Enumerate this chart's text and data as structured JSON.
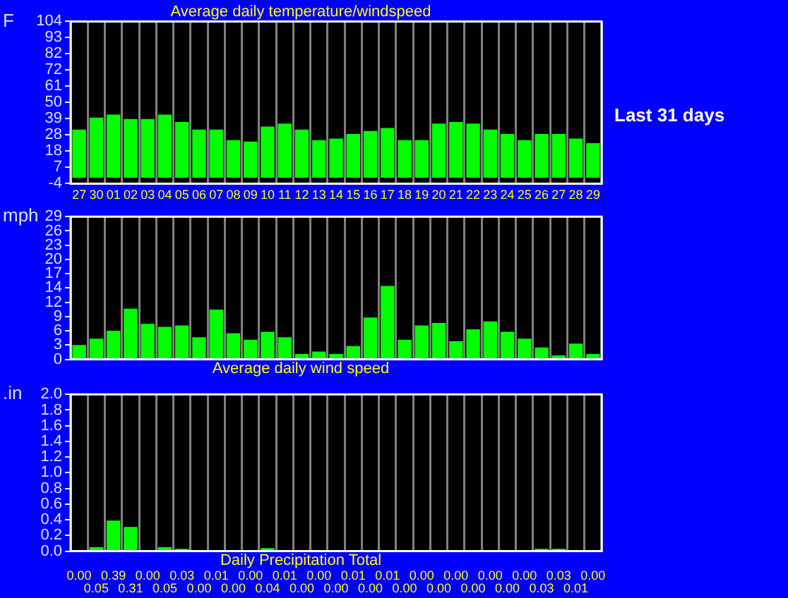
{
  "chart_data": [
    {
      "type": "bar",
      "title": "Average daily temperature/windspeed",
      "ylabel": "F",
      "categories": [
        "27",
        "30",
        "01",
        "02",
        "03",
        "04",
        "05",
        "06",
        "07",
        "08",
        "09",
        "10",
        "11",
        "12",
        "13",
        "14",
        "15",
        "16",
        "17",
        "18",
        "19",
        "20",
        "21",
        "22",
        "23",
        "24",
        "25",
        "26",
        "27",
        "28",
        "29"
      ],
      "color": "#00ff00",
      "values": [
        32,
        40,
        42,
        39,
        39,
        42,
        37,
        32,
        32,
        25,
        24,
        34,
        36,
        32,
        25,
        26,
        29,
        31,
        33,
        25,
        25,
        36,
        37,
        36,
        32,
        29,
        25,
        29,
        29,
        26,
        23
      ],
      "ylim": [
        -4,
        104
      ],
      "yticks": [
        {
          "value": -4,
          "label": "-4"
        },
        {
          "value": 6.8,
          "label": "7"
        },
        {
          "value": 17.6,
          "label": "18"
        },
        {
          "value": 28.4,
          "label": "28"
        },
        {
          "value": 39.2,
          "label": "39"
        },
        {
          "value": 50,
          "label": "50"
        },
        {
          "value": 60.8,
          "label": "61"
        },
        {
          "value": 71.6,
          "label": "72"
        },
        {
          "value": 82.4,
          "label": "82"
        },
        {
          "value": 93.2,
          "label": "93"
        },
        {
          "value": 104,
          "label": "104"
        }
      ],
      "grid": "x",
      "annotations": [
        "Last 31 days"
      ]
    },
    {
      "type": "bar",
      "title": "Average daily wind speed",
      "ylabel": "mph",
      "categories": [
        null,
        null,
        null,
        null,
        null,
        null,
        null,
        null,
        null,
        null,
        null,
        null,
        null,
        null,
        null,
        null,
        null,
        null,
        null,
        null,
        null,
        null,
        null,
        null,
        null,
        null,
        null,
        null,
        null,
        null,
        null
      ],
      "color": "#00ff00",
      "values": [
        2.9,
        4.2,
        5.8,
        10.3,
        7.2,
        6.6,
        6.9,
        4.5,
        10.1,
        5.3,
        4.0,
        5.6,
        4.5,
        1.1,
        1.6,
        1.1,
        2.7,
        8.5,
        14.9,
        4.0,
        6.9,
        7.4,
        3.7,
        6.1,
        7.7,
        5.6,
        4.2,
        2.4,
        0.8,
        3.2,
        1.1
      ],
      "ylim": [
        0,
        29
      ],
      "yticks": [
        0,
        {
          "value": 2.9,
          "label": "3"
        },
        {
          "value": 5.8,
          "label": "6"
        },
        {
          "value": 8.7,
          "label": "9"
        },
        {
          "value": 11.6,
          "label": "12"
        },
        {
          "value": 14.5,
          "label": "14"
        },
        {
          "value": 17.4,
          "label": "17"
        },
        {
          "value": 20.3,
          "label": "20"
        },
        {
          "value": 23.2,
          "label": "23"
        },
        {
          "value": 26.1,
          "label": "26"
        },
        29
      ],
      "grid": "x",
      "tick_labels": "y"
    },
    {
      "type": "bar",
      "title": "Daily Precipitation Total",
      "ylabel": ".in",
      "categories": [
        null,
        null,
        null,
        null,
        null,
        null,
        null,
        null,
        null,
        null,
        null,
        null,
        null,
        null,
        null,
        null,
        null,
        null,
        null,
        null,
        null,
        null,
        null,
        null,
        null,
        null,
        null,
        null,
        null,
        null,
        null
      ],
      "color": "#00ff00",
      "values": [
        0,
        0.05,
        0.39,
        0.31,
        0,
        0.05,
        0.03,
        0,
        0.01,
        0,
        0,
        0.04,
        0.01,
        0,
        0,
        0,
        0.01,
        0,
        0.01,
        0,
        0,
        0,
        0,
        0,
        0,
        0,
        0,
        0.03,
        0.03,
        0.01,
        0
      ],
      "value_labels": [
        "0.00",
        "0.05",
        "0.39",
        "0.31",
        "0.00",
        "0.05",
        "0.03",
        "0.00",
        "0.01",
        "0.00",
        "0.00",
        "0.04",
        "0.01",
        "0.00",
        "0.00",
        "0.00",
        "0.01",
        "0.00",
        "0.01",
        "0.00",
        "0.00",
        "0.00",
        "0.00",
        "0.00",
        "0.00",
        "0.00",
        "0.00",
        "0.03",
        "0.03",
        "0.01",
        "0.00"
      ],
      "ylim": [
        0,
        2.0
      ],
      "yticks": [
        {
          "value": 0,
          "label": "0.0"
        },
        {
          "value": 0.2,
          "label": "0.2"
        },
        {
          "value": 0.4,
          "label": "0.4"
        },
        {
          "value": 0.6,
          "label": "0.6"
        },
        {
          "value": 0.8,
          "label": "0.8"
        },
        {
          "value": 1.0,
          "label": "1.0"
        },
        {
          "value": 1.2,
          "label": "1.2"
        },
        {
          "value": 1.4,
          "label": "1.4"
        },
        {
          "value": 1.6,
          "label": "1.6"
        },
        {
          "value": 1.8,
          "label": "1.8"
        },
        {
          "value": 2.0,
          "label": "2.0"
        }
      ],
      "grid": "x",
      "tick_labels": "y"
    }
  ]
}
